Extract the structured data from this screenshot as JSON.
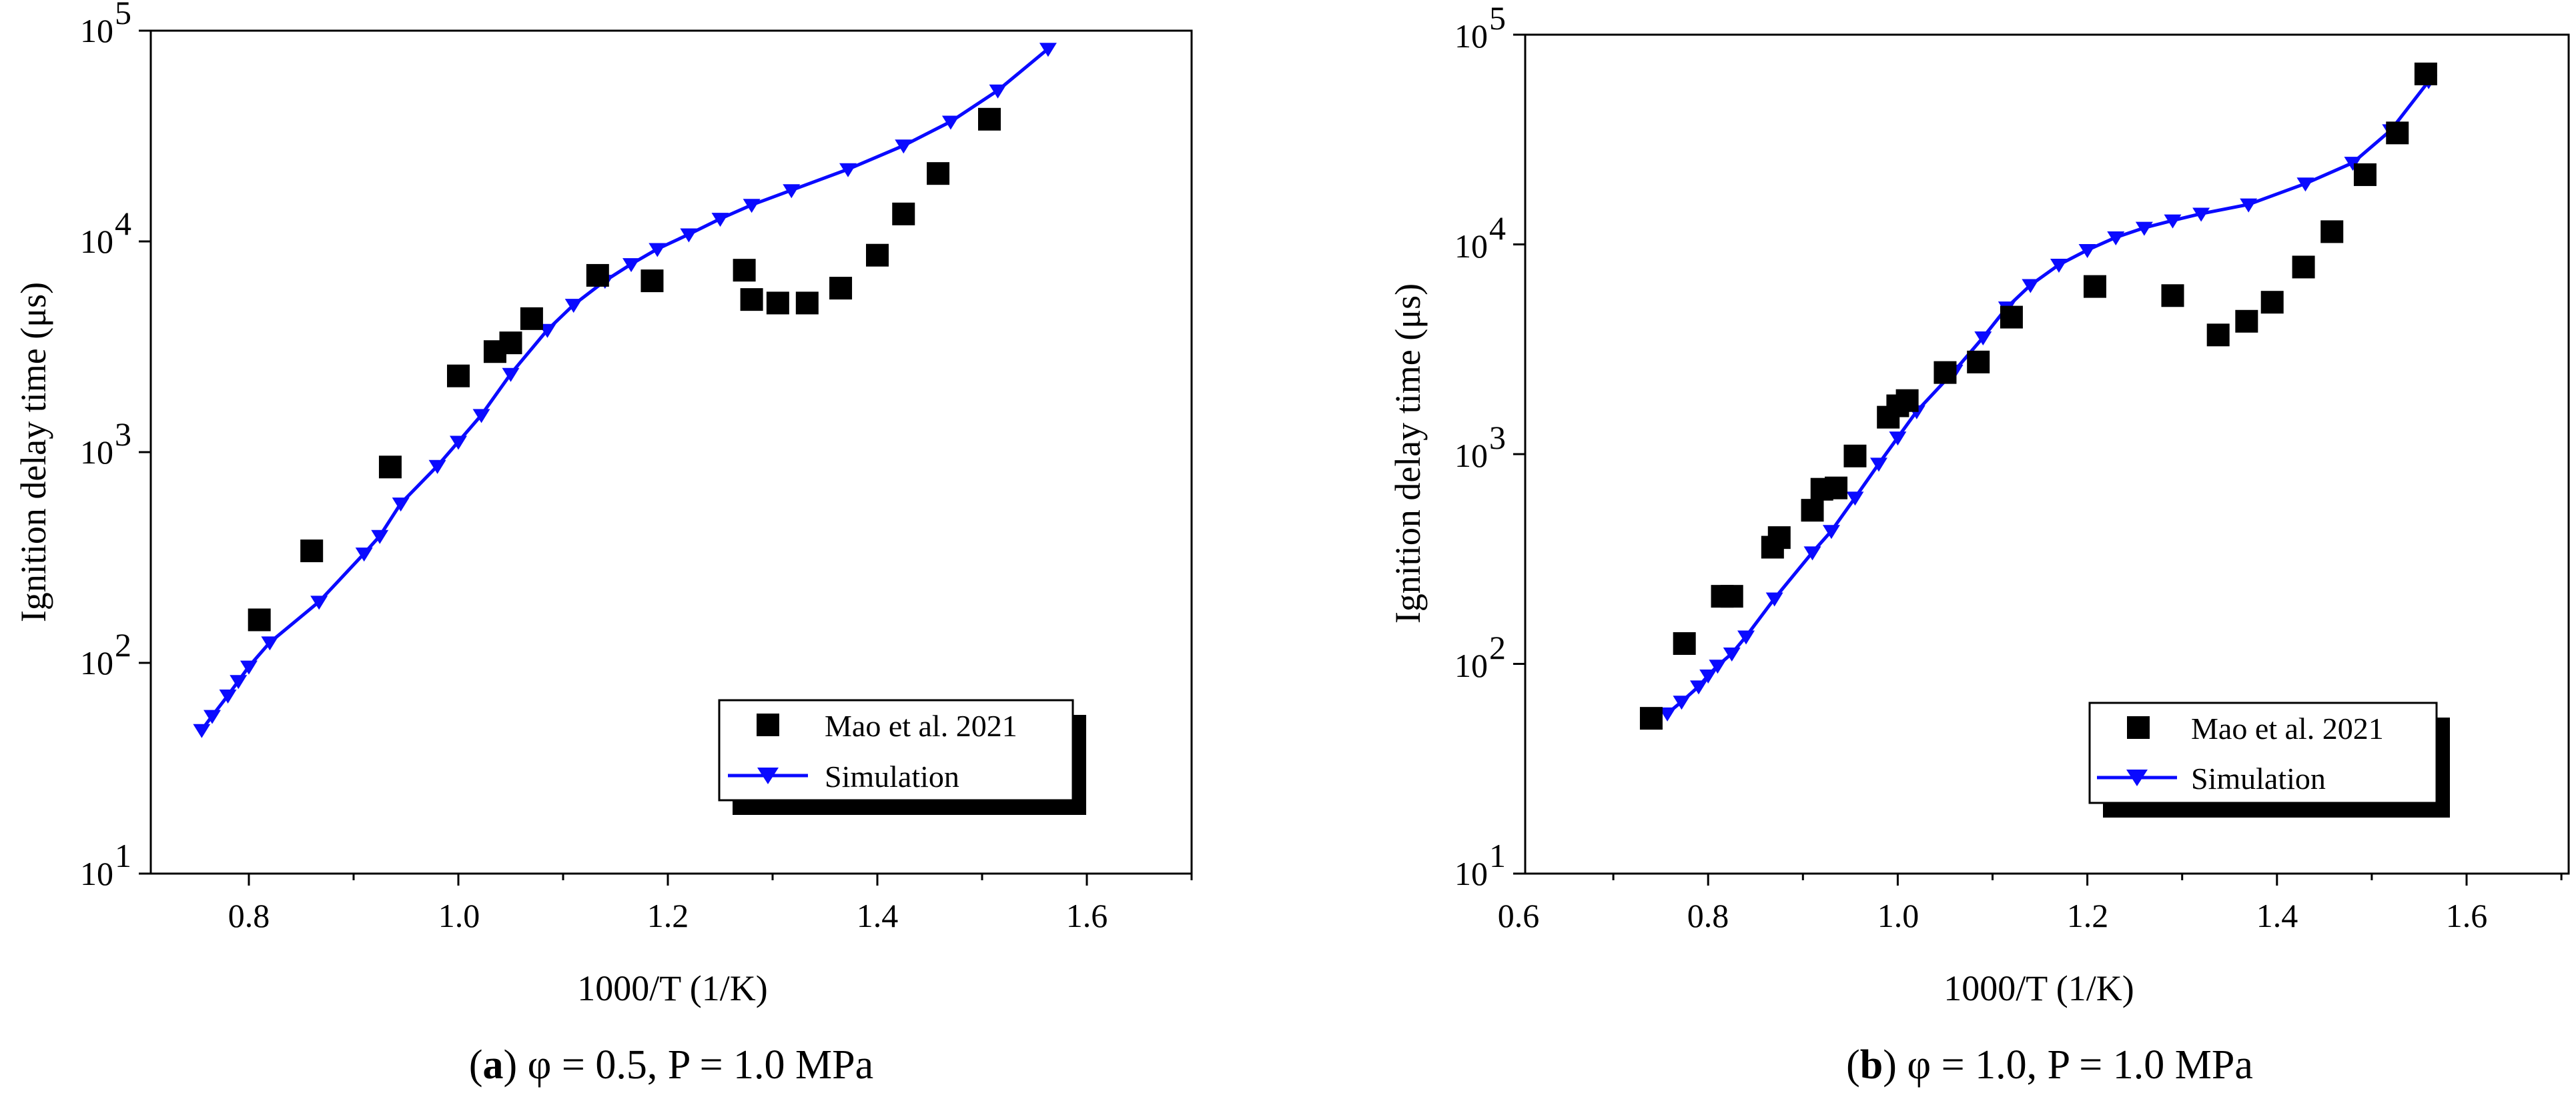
{
  "figure": {
    "panels": [
      {
        "caption": {
          "letter": "a",
          "text": "φ = 0.5, P = 1.0 MPa"
        },
        "xlabel": "1000/T (1/K)",
        "ylabel": "Ignition delay time (μs)",
        "xticks": [
          "0.8",
          "1.0",
          "1.2",
          "1.4",
          "1.6"
        ],
        "yticks": [
          {
            "base": "10",
            "exp": "1"
          },
          {
            "base": "10",
            "exp": "2"
          },
          {
            "base": "10",
            "exp": "3"
          },
          {
            "base": "10",
            "exp": "4"
          },
          {
            "base": "10",
            "exp": "5"
          }
        ],
        "legend": [
          "Mao et al. 2021",
          "Simulation"
        ]
      },
      {
        "caption": {
          "letter": "b",
          "text": "φ = 1.0, P = 1.0 MPa"
        },
        "xlabel": "1000/T (1/K)",
        "ylabel": "Ignition delay time (μs)",
        "xticks": [
          "0.6",
          "0.8",
          "1.0",
          "1.2",
          "1.4",
          "1.6"
        ],
        "yticks": [
          {
            "base": "10",
            "exp": "1"
          },
          {
            "base": "10",
            "exp": "2"
          },
          {
            "base": "10",
            "exp": "3"
          },
          {
            "base": "10",
            "exp": "4"
          },
          {
            "base": "10",
            "exp": "5"
          }
        ],
        "legend": [
          "Mao et al. 2021",
          "Simulation"
        ]
      }
    ]
  },
  "colors": {
    "simulation": "#0a0aff",
    "experiment": "#000000",
    "axis": "#000000"
  },
  "chart_data": [
    {
      "type": "scatter",
      "xlabel": "1000/T (1/K)",
      "ylabel": "Ignition delay time (μs)",
      "xlim": [
        0.71,
        1.73
      ],
      "ylim": [
        10,
        100000
      ],
      "yscale": "log",
      "legend_position": "bottom-right",
      "series": [
        {
          "name": "Mao et al. 2021",
          "marker": "square",
          "points": [
            [
              0.81,
              160
            ],
            [
              0.86,
              340
            ],
            [
              0.935,
              850
            ],
            [
              1.0,
              2300
            ],
            [
              1.035,
              3000
            ],
            [
              1.05,
              3300
            ],
            [
              1.07,
              4300
            ],
            [
              1.133,
              6900
            ],
            [
              1.185,
              6500
            ],
            [
              1.273,
              7300
            ],
            [
              1.28,
              5300
            ],
            [
              1.305,
              5100
            ],
            [
              1.333,
              5100
            ],
            [
              1.365,
              6000
            ],
            [
              1.4,
              8600
            ],
            [
              1.425,
              13500
            ],
            [
              1.458,
              21000
            ],
            [
              1.507,
              38000
            ]
          ]
        },
        {
          "name": "Simulation",
          "marker": "triangle-down",
          "points": [
            [
              0.755,
              48
            ],
            [
              0.765,
              56
            ],
            [
              0.78,
              70
            ],
            [
              0.79,
              82
            ],
            [
              0.8,
              96
            ],
            [
              0.82,
              125
            ],
            [
              0.867,
              195
            ],
            [
              0.91,
              330
            ],
            [
              0.925,
              400
            ],
            [
              0.945,
              570
            ],
            [
              0.98,
              860
            ],
            [
              1.0,
              1120
            ],
            [
              1.022,
              1500
            ],
            [
              1.05,
              2350
            ],
            [
              1.085,
              3800
            ],
            [
              1.11,
              5000
            ],
            [
              1.14,
              6500
            ],
            [
              1.165,
              7800
            ],
            [
              1.19,
              9200
            ],
            [
              1.22,
              10800
            ],
            [
              1.25,
              12800
            ],
            [
              1.28,
              14900
            ],
            [
              1.318,
              17500
            ],
            [
              1.372,
              22000
            ],
            [
              1.425,
              28500
            ],
            [
              1.47,
              37000
            ],
            [
              1.515,
              52000
            ],
            [
              1.563,
              82000
            ]
          ]
        }
      ]
    },
    {
      "type": "scatter",
      "xlabel": "1000/T (1/K)",
      "ylabel": "Ignition delay time (μs)",
      "xlim": [
        0.6,
        1.75
      ],
      "ylim": [
        10,
        100000
      ],
      "yscale": "log",
      "legend_position": "bottom-right",
      "series": [
        {
          "name": "Mao et al. 2021",
          "marker": "square",
          "points": [
            [
              0.74,
              55
            ],
            [
              0.775,
              125
            ],
            [
              0.815,
              210
            ],
            [
              0.825,
              210
            ],
            [
              0.868,
              360
            ],
            [
              0.875,
              400
            ],
            [
              0.91,
              540
            ],
            [
              0.92,
              680
            ],
            [
              0.935,
              690
            ],
            [
              0.955,
              980
            ],
            [
              0.99,
              1500
            ],
            [
              1.0,
              1700
            ],
            [
              1.01,
              1800
            ],
            [
              1.05,
              2450
            ],
            [
              1.085,
              2750
            ],
            [
              1.12,
              4500
            ],
            [
              1.208,
              6300
            ],
            [
              1.29,
              5700
            ],
            [
              1.338,
              3700
            ],
            [
              1.368,
              4300
            ],
            [
              1.395,
              5300
            ],
            [
              1.428,
              7800
            ],
            [
              1.458,
              11500
            ],
            [
              1.493,
              21500
            ],
            [
              1.527,
              34000
            ],
            [
              1.557,
              65000
            ]
          ]
        },
        {
          "name": "Simulation",
          "marker": "triangle-down",
          "points": [
            [
              0.757,
              58
            ],
            [
              0.772,
              66
            ],
            [
              0.79,
              78
            ],
            [
              0.8,
              88
            ],
            [
              0.81,
              98
            ],
            [
              0.825,
              112
            ],
            [
              0.84,
              135
            ],
            [
              0.87,
              205
            ],
            [
              0.91,
              340
            ],
            [
              0.93,
              430
            ],
            [
              0.955,
              620
            ],
            [
              0.98,
              900
            ],
            [
              1.0,
              1200
            ],
            [
              1.02,
              1600
            ],
            [
              1.06,
              2500
            ],
            [
              1.09,
              3600
            ],
            [
              1.115,
              5000
            ],
            [
              1.14,
              6400
            ],
            [
              1.17,
              8000
            ],
            [
              1.2,
              9400
            ],
            [
              1.23,
              10800
            ],
            [
              1.26,
              12000
            ],
            [
              1.29,
              13000
            ],
            [
              1.32,
              14000
            ],
            [
              1.37,
              15500
            ],
            [
              1.43,
              19500
            ],
            [
              1.48,
              24500
            ],
            [
              1.52,
              35000
            ],
            [
              1.56,
              60000
            ]
          ]
        }
      ]
    }
  ]
}
